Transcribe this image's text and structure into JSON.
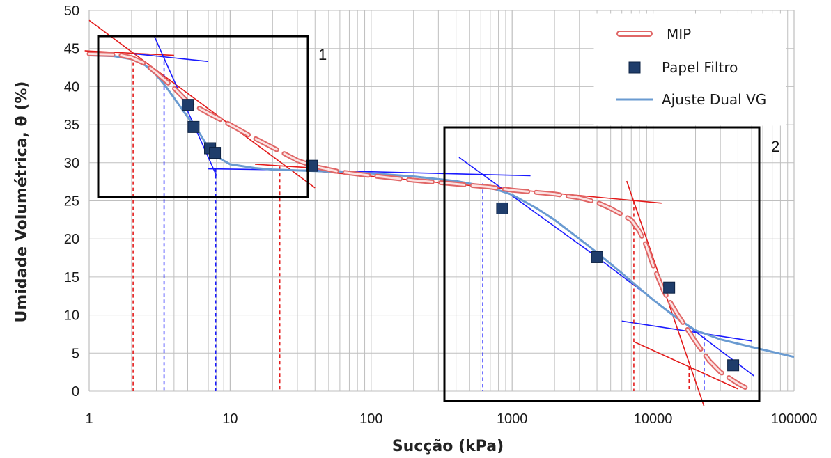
{
  "chart_data": {
    "type": "scatter",
    "xlabel": "Sucção (kPa)",
    "ylabel": "Umidade Volumétrica, θ (%)",
    "xscale": "log",
    "xlim": [
      1,
      100000
    ],
    "ylim": [
      0,
      50
    ],
    "xticks": [
      1,
      10,
      100,
      1000,
      10000,
      100000
    ],
    "xtick_labels": [
      "1",
      "10",
      "100",
      "1000",
      "10000",
      "100000"
    ],
    "yticks": [
      0,
      5,
      10,
      15,
      20,
      25,
      30,
      35,
      40,
      45,
      50
    ],
    "grid": true,
    "legend_position": "top-right",
    "series": [
      {
        "name": "MIP",
        "style": "dashed-line",
        "color": "#e06666",
        "x": [
          1,
          1.6,
          2.0,
          2.5,
          3,
          4,
          5,
          7,
          10,
          15,
          20,
          30,
          40,
          60,
          100,
          200,
          400,
          700,
          1000,
          2000,
          3000,
          4000,
          5000,
          6000,
          7000,
          8000,
          9000,
          10000,
          12000,
          15000,
          20000,
          25000,
          30000,
          40000,
          45000
        ],
        "y": [
          44.3,
          44.2,
          43.8,
          43.0,
          41.8,
          39.8,
          38.0,
          36.5,
          35.0,
          33.2,
          32.0,
          30.3,
          29.5,
          28.8,
          28.3,
          27.7,
          27.2,
          26.8,
          26.4,
          25.9,
          25.4,
          24.8,
          24.0,
          23.2,
          22.5,
          21.0,
          19.0,
          16.5,
          13.0,
          10.0,
          6.5,
          4.0,
          2.5,
          1.0,
          0.5
        ]
      },
      {
        "name": "Papel Filtro",
        "style": "marker-square",
        "color": "#1f3d6b",
        "x": [
          5,
          5.5,
          7.2,
          7.8,
          38,
          850,
          4000,
          13000,
          37000
        ],
        "y": [
          37.6,
          34.7,
          31.9,
          31.3,
          29.6,
          24.0,
          17.6,
          13.6,
          3.4
        ]
      },
      {
        "name": "Ajuste Dual VG",
        "style": "line",
        "color": "#6a9bd1",
        "x": [
          1,
          1.5,
          2,
          2.5,
          3,
          3.5,
          4,
          5,
          6,
          7,
          8,
          10,
          15,
          20,
          40,
          100,
          200,
          400,
          600,
          800,
          1000,
          1500,
          2000,
          3000,
          4000,
          6000,
          8000,
          10000,
          15000,
          20000,
          30000,
          50000,
          100000
        ],
        "y": [
          44.1,
          44.0,
          43.6,
          42.8,
          41.5,
          40.0,
          38.5,
          36.0,
          34.0,
          32.0,
          30.8,
          29.8,
          29.3,
          29.1,
          28.9,
          28.6,
          28.2,
          27.6,
          27.0,
          26.4,
          25.8,
          24.0,
          22.5,
          20.0,
          18.2,
          15.5,
          13.5,
          12.0,
          9.5,
          8.0,
          6.8,
          5.8,
          4.5
        ]
      }
    ],
    "annotations": [
      "1",
      "2"
    ]
  },
  "colors": {
    "mip": "#e06666",
    "papel_filtro": "#1f3d6b",
    "ajuste": "#6a9bd1",
    "tangent_red": "#e31a1a",
    "tangent_blue": "#1a1aff",
    "grid": "#bfbfbf",
    "frame": "#000000"
  }
}
